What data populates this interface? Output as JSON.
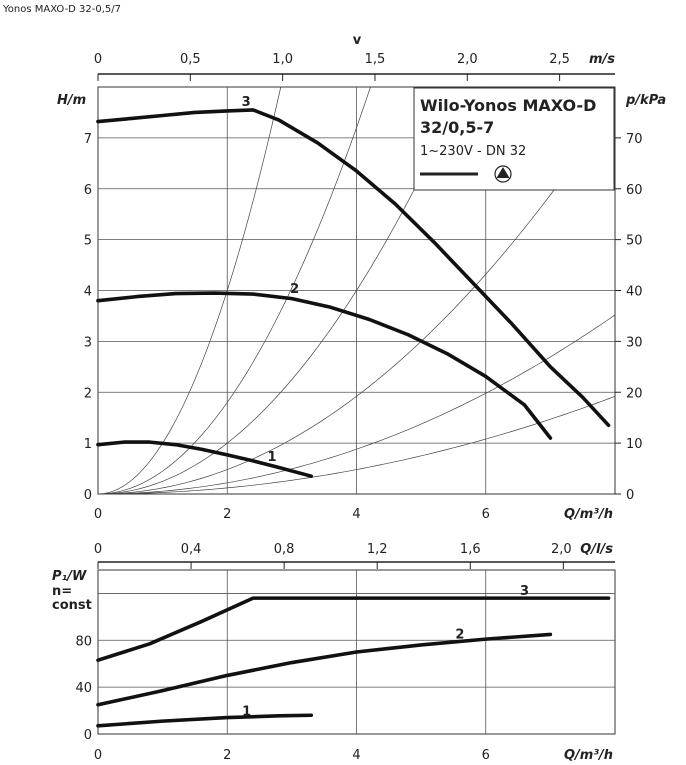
{
  "page_title": "Yonos MAXO-D 32-0,5/7",
  "legend": {
    "title_line1": "Wilo-Yonos MAXO-D",
    "title_line2": "32/0,5-7",
    "subtitle": "1~230V - DN 32"
  },
  "chart_data": [
    {
      "type": "line",
      "name": "head",
      "xlabel": "Q/m³/h",
      "ylabel": "H/m",
      "y2label": "p/kPa",
      "x2label_top": "v",
      "x2unit_top": "m/s",
      "xlim": [
        0,
        8
      ],
      "ylim": [
        0,
        8
      ],
      "y2lim": [
        0,
        80
      ],
      "x2lim": [
        0,
        2.8
      ],
      "grid": true,
      "x_ticks": [
        "0",
        "2",
        "4",
        "6"
      ],
      "y_ticks": [
        "0",
        "1",
        "2",
        "3",
        "4",
        "5",
        "6",
        "7"
      ],
      "y2_ticks": [
        "0",
        "10",
        "20",
        "30",
        "40",
        "50",
        "60",
        "70"
      ],
      "x2_ticks": [
        "0",
        "0,5",
        "1,0",
        "1,5",
        "2,0",
        "2,5"
      ],
      "series": [
        {
          "label": "1",
          "x": [
            0,
            0.4,
            0.8,
            1.2,
            1.6,
            2.0,
            2.4,
            2.8,
            3.3
          ],
          "y": [
            0.97,
            1.02,
            1.02,
            0.97,
            0.88,
            0.77,
            0.65,
            0.52,
            0.35
          ]
        },
        {
          "label": "2",
          "x": [
            0,
            0.6,
            1.2,
            1.8,
            2.4,
            3.0,
            3.6,
            4.2,
            4.8,
            5.4,
            6.0,
            6.6,
            7.0
          ],
          "y": [
            3.8,
            3.88,
            3.94,
            3.95,
            3.93,
            3.84,
            3.67,
            3.43,
            3.13,
            2.76,
            2.31,
            1.75,
            1.1
          ]
        },
        {
          "label": "3",
          "x": [
            0,
            0.5,
            1.0,
            1.5,
            2.0,
            2.4,
            2.8,
            3.4,
            4.0,
            4.6,
            5.2,
            5.8,
            6.4,
            7.0,
            7.5,
            7.9
          ],
          "y": [
            7.32,
            7.38,
            7.44,
            7.5,
            7.53,
            7.55,
            7.35,
            6.9,
            6.35,
            5.7,
            4.95,
            4.15,
            3.35,
            2.5,
            1.9,
            1.35
          ]
        }
      ],
      "system_curve_coefficients": [
        1.0,
        0.45,
        0.25,
        0.12,
        0.055,
        0.03
      ]
    },
    {
      "type": "line",
      "name": "power",
      "xlabel": "Q/m³/h",
      "ylabel": "P₁/W",
      "ylabel_note_1": "n=",
      "ylabel_note_2": "const",
      "x2label_top": "Q/l/s",
      "xlim": [
        0,
        8
      ],
      "ylim": [
        0,
        140
      ],
      "x2lim": [
        0,
        2.222
      ],
      "grid": true,
      "x_ticks": [
        "0",
        "2",
        "4",
        "6"
      ],
      "y_ticks": [
        "0",
        "40",
        "80"
      ],
      "x2_ticks": [
        "0",
        "0,4",
        "0,8",
        "1,2",
        "1,6",
        "2,0"
      ],
      "series": [
        {
          "label": "1",
          "x": [
            0,
            1.0,
            2.0,
            2.8,
            3.3
          ],
          "y": [
            7,
            11,
            14,
            15.5,
            16
          ]
        },
        {
          "label": "2",
          "x": [
            0,
            1.0,
            2.0,
            3.0,
            4.0,
            5.0,
            6.0,
            7.0
          ],
          "y": [
            25,
            37,
            50,
            61,
            70,
            76,
            81,
            85
          ]
        },
        {
          "label": "3",
          "x": [
            0,
            0.8,
            1.6,
            2.4,
            3.0,
            4.0,
            5.0,
            6.0,
            7.0,
            7.9
          ],
          "y": [
            63,
            77,
            96,
            116,
            116,
            116,
            116,
            116,
            116,
            116
          ]
        }
      ]
    }
  ]
}
